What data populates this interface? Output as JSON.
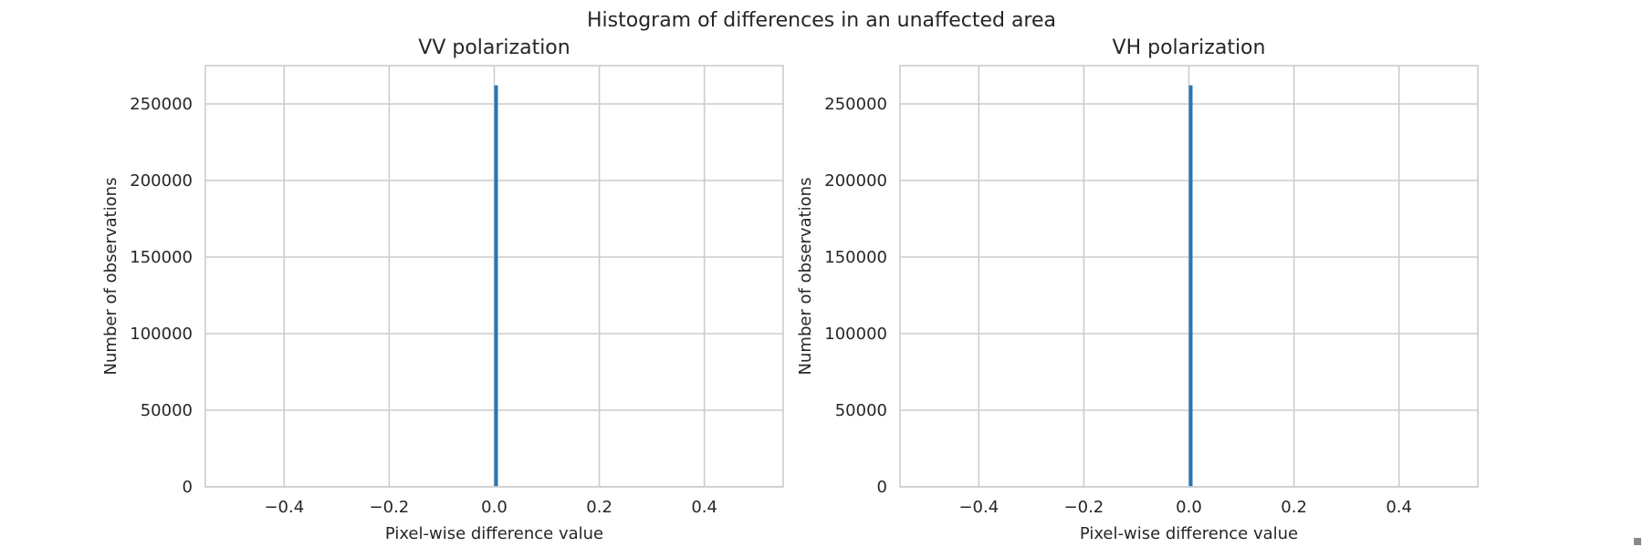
{
  "figure": {
    "suptitle": "Histogram of differences in an unaffected area"
  },
  "chart_data": [
    {
      "type": "bar",
      "title": "VV polarization",
      "xlabel": "Pixel-wise difference value",
      "ylabel": "Number of observations",
      "xlim": [
        -0.55,
        0.55
      ],
      "ylim": [
        0,
        275000
      ],
      "x_ticks": [
        -0.4,
        -0.2,
        0.0,
        0.2,
        0.4
      ],
      "x_tick_labels": [
        "−0.4",
        "−0.2",
        "0.0",
        "0.2",
        "0.4"
      ],
      "y_ticks": [
        0,
        50000,
        100000,
        150000,
        200000,
        250000
      ],
      "y_tick_labels": [
        "0",
        "50000",
        "100000",
        "150000",
        "200000",
        "250000"
      ],
      "grid": true,
      "bar_color": "#2b75b0",
      "bins": [
        {
          "x0": 0.0,
          "x1": 0.005,
          "value": 262144
        }
      ]
    },
    {
      "type": "bar",
      "title": "VH polarization",
      "xlabel": "Pixel-wise difference value",
      "ylabel": "Number of observations",
      "xlim": [
        -0.55,
        0.55
      ],
      "ylim": [
        0,
        275000
      ],
      "x_ticks": [
        -0.4,
        -0.2,
        0.0,
        0.2,
        0.4
      ],
      "x_tick_labels": [
        "−0.4",
        "−0.2",
        "0.0",
        "0.2",
        "0.4"
      ],
      "y_ticks": [
        0,
        50000,
        100000,
        150000,
        200000,
        250000
      ],
      "y_tick_labels": [
        "0",
        "50000",
        "100000",
        "150000",
        "200000",
        "250000"
      ],
      "grid": true,
      "bar_color": "#2b75b0",
      "bins": [
        {
          "x0": 0.0,
          "x1": 0.005,
          "value": 262144
        }
      ]
    }
  ]
}
